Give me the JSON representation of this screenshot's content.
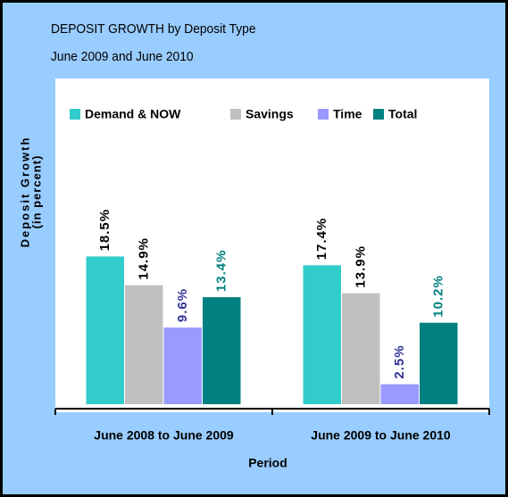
{
  "chart_data": {
    "type": "bar",
    "title": "DEPOSIT GROWTH by Deposit Type",
    "subtitle": "June 2009 and June 2010",
    "y_label": [
      "Deposit Growth",
      "(in percent)"
    ],
    "x_label": "Period",
    "categories": [
      "June 2008 to June 2009",
      "June 2009 to June 2010"
    ],
    "series": [
      {
        "name": "Demand & NOW",
        "color": "#33cccc",
        "label_color": "#000000",
        "values": [
          18.5,
          17.4
        ],
        "value_labels": [
          "18.5%",
          "17.4%"
        ]
      },
      {
        "name": "Savings",
        "color": "#c0c0c0",
        "label_color": "#000000",
        "values": [
          14.9,
          13.9
        ],
        "value_labels": [
          "14.9%",
          "13.9%"
        ]
      },
      {
        "name": "Time",
        "color": "#9999ff",
        "label_color": "#333399",
        "values": [
          9.6,
          2.5
        ],
        "value_labels": [
          "9.6%",
          "2.5%"
        ]
      },
      {
        "name": "Total",
        "color": "#008080",
        "label_color": "#008080",
        "values": [
          13.4,
          10.2
        ],
        "value_labels": [
          "13.4%",
          "10.2%"
        ]
      }
    ],
    "ylim": [
      0,
      20
    ],
    "legend": "top"
  }
}
